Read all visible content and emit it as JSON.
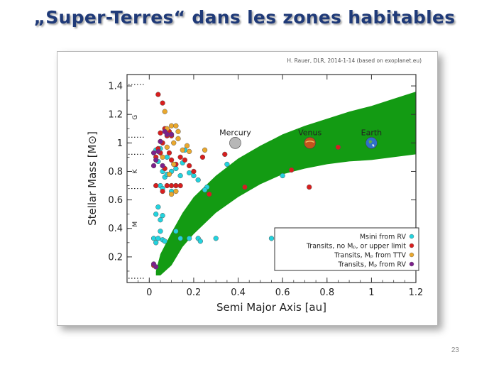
{
  "slide": {
    "title": "„Super-Terres“ dans les zones habitables",
    "page_number": "23"
  },
  "figure": {
    "credit": "H. Rauer, DLR, 2014-1-14 (based on exoplanet.eu)"
  },
  "chart_data": {
    "type": "scatter",
    "xlabel": "Semi Major Axis [au]",
    "ylabel": "Stellar Mass [M⊙]",
    "xlim": [
      -0.1,
      1.2
    ],
    "ylim": [
      0.02,
      1.48
    ],
    "xticks": [
      {
        "v": 0,
        "label": "0"
      },
      {
        "v": 0.2,
        "label": "0.2"
      },
      {
        "v": 0.4,
        "label": "0.4"
      },
      {
        "v": 0.6,
        "label": "0.6"
      },
      {
        "v": 0.8,
        "label": "0.8"
      },
      {
        "v": 1.0,
        "label": "1"
      },
      {
        "v": 1.2,
        "label": "1.2"
      }
    ],
    "yticks": [
      {
        "v": 0.2,
        "label": "0.2"
      },
      {
        "v": 0.4,
        "label": "0.4"
      },
      {
        "v": 0.6,
        "label": "0.6"
      },
      {
        "v": 0.8,
        "label": "0.8"
      },
      {
        "v": 1.0,
        "label": "1"
      },
      {
        "v": 1.2,
        "label": "1.2"
      },
      {
        "v": 1.4,
        "label": "1.4"
      }
    ],
    "grid": false,
    "legend_position": "bottom-right",
    "colors": {
      "habitable_zone": "#139b13",
      "msini_rv": "#22d3de",
      "transit_no_mass": "#d81e1e",
      "transit_ttv": "#eaa82d",
      "transit_rv": "#7c1f8c"
    },
    "habitable_zone": {
      "x": [
        0.03,
        0.05,
        0.1,
        0.15,
        0.2,
        0.3,
        0.4,
        0.5,
        0.6,
        0.7,
        0.8,
        0.9,
        1.0,
        1.1,
        1.2
      ],
      "inner": [
        0.07,
        0.07,
        0.14,
        0.27,
        0.36,
        0.51,
        0.62,
        0.71,
        0.78,
        0.82,
        0.85,
        0.87,
        0.88,
        0.9,
        0.92
      ],
      "outer": [
        0.1,
        0.22,
        0.37,
        0.51,
        0.62,
        0.77,
        0.89,
        0.98,
        1.06,
        1.12,
        1.17,
        1.22,
        1.26,
        1.31,
        1.36
      ]
    },
    "spectral_types": [
      {
        "label": "G",
        "y": 1.18
      },
      {
        "label": "K",
        "y": 0.8
      },
      {
        "label": "M",
        "y": 0.43
      }
    ],
    "type_boundaries": [
      1.41,
      1.04,
      0.92,
      0.68,
      0.05
    ],
    "solar_system": [
      {
        "name": "Mercury",
        "x": 0.387,
        "y": 1.0,
        "icon": "mercury-icon",
        "color": "#b7b7b7"
      },
      {
        "name": "Venus",
        "x": 0.723,
        "y": 1.0,
        "icon": "venus-icon",
        "color": "#c4541c"
      },
      {
        "name": "Earth",
        "x": 1.0,
        "y": 1.0,
        "icon": "earth-icon",
        "color": "#2f6fc9"
      }
    ],
    "series": [
      {
        "name": "Msini from RV",
        "color": "#22d3de",
        "points": [
          [
            0.02,
            0.33
          ],
          [
            0.03,
            0.3
          ],
          [
            0.04,
            0.33
          ],
          [
            0.05,
            0.38
          ],
          [
            0.06,
            0.32
          ],
          [
            0.07,
            0.31
          ],
          [
            0.03,
            0.5
          ],
          [
            0.05,
            0.46
          ],
          [
            0.06,
            0.49
          ],
          [
            0.04,
            0.55
          ],
          [
            0.05,
            0.7
          ],
          [
            0.06,
            0.68
          ],
          [
            0.07,
            0.76
          ],
          [
            0.08,
            0.78
          ],
          [
            0.06,
            0.8
          ],
          [
            0.04,
            0.87
          ],
          [
            0.05,
            0.96
          ],
          [
            0.03,
            0.95
          ],
          [
            0.08,
            0.9
          ],
          [
            0.1,
            0.8
          ],
          [
            0.12,
            0.82
          ],
          [
            0.14,
            0.77
          ],
          [
            0.15,
            0.86
          ],
          [
            0.16,
            0.95
          ],
          [
            0.18,
            0.79
          ],
          [
            0.2,
            0.77
          ],
          [
            0.22,
            0.74
          ],
          [
            0.1,
            0.66
          ],
          [
            0.12,
            0.7
          ],
          [
            0.26,
            0.69
          ],
          [
            0.25,
            0.67
          ],
          [
            0.12,
            0.38
          ],
          [
            0.14,
            0.33
          ],
          [
            0.18,
            0.33
          ],
          [
            0.22,
            0.33
          ],
          [
            0.23,
            0.31
          ],
          [
            0.3,
            0.33
          ],
          [
            0.35,
            0.85
          ],
          [
            0.55,
            0.33
          ],
          [
            0.6,
            0.77
          ]
        ]
      },
      {
        "name": "Transits, no Mₚ, or upper limit",
        "color": "#d81e1e",
        "points": [
          [
            0.04,
            1.34
          ],
          [
            0.06,
            1.28
          ],
          [
            0.07,
            1.1
          ],
          [
            0.05,
            1.07
          ],
          [
            0.08,
            1.05
          ],
          [
            0.09,
            1.08
          ],
          [
            0.1,
            1.05
          ],
          [
            0.06,
            1.0
          ],
          [
            0.04,
            0.96
          ],
          [
            0.05,
            0.93
          ],
          [
            0.03,
            0.9
          ],
          [
            0.09,
            0.93
          ],
          [
            0.1,
            0.88
          ],
          [
            0.12,
            0.85
          ],
          [
            0.14,
            0.9
          ],
          [
            0.16,
            0.88
          ],
          [
            0.18,
            0.84
          ],
          [
            0.2,
            0.8
          ],
          [
            0.03,
            0.7
          ],
          [
            0.06,
            0.66
          ],
          [
            0.08,
            0.7
          ],
          [
            0.1,
            0.7
          ],
          [
            0.12,
            0.7
          ],
          [
            0.14,
            0.7
          ],
          [
            0.24,
            0.9
          ],
          [
            0.34,
            0.92
          ],
          [
            0.27,
            0.64
          ],
          [
            0.43,
            0.69
          ],
          [
            0.64,
            0.81
          ],
          [
            0.72,
            0.69
          ],
          [
            0.85,
            0.97
          ],
          [
            0.07,
            0.82
          ],
          [
            0.02,
            0.14
          ]
        ]
      },
      {
        "name": "Transits, Mₚ from TTV",
        "color": "#eaa82d",
        "points": [
          [
            0.07,
            1.22
          ],
          [
            0.08,
            1.1
          ],
          [
            0.1,
            1.12
          ],
          [
            0.12,
            1.12
          ],
          [
            0.11,
            1.0
          ],
          [
            0.13,
            1.03
          ],
          [
            0.15,
            0.95
          ],
          [
            0.17,
            0.98
          ],
          [
            0.18,
            0.94
          ],
          [
            0.25,
            0.95
          ],
          [
            0.1,
            0.64
          ],
          [
            0.12,
            0.66
          ],
          [
            0.09,
            0.78
          ],
          [
            0.11,
            0.85
          ],
          [
            0.06,
            0.9
          ],
          [
            0.13,
            1.08
          ],
          [
            0.08,
            0.97
          ]
        ]
      },
      {
        "name": "Transits, Mₚ from RV",
        "color": "#7c1f8c",
        "points": [
          [
            0.02,
            0.93
          ],
          [
            0.03,
            0.88
          ],
          [
            0.04,
            0.94
          ],
          [
            0.05,
            1.01
          ],
          [
            0.07,
            1.08
          ],
          [
            0.08,
            1.06
          ],
          [
            0.1,
            1.06
          ],
          [
            0.02,
            0.84
          ],
          [
            0.03,
            0.13
          ],
          [
            0.02,
            0.15
          ],
          [
            0.06,
            0.84
          ]
        ]
      }
    ]
  }
}
